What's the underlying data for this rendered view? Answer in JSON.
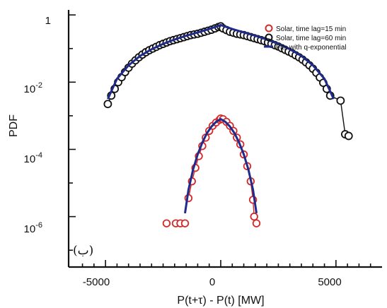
{
  "chart_data": {
    "type": "scatter",
    "xlabel": "P(t+τ) - P(t) [MW]",
    "ylabel": "PDF",
    "xlim": [
      -6600,
      7000
    ],
    "y_scale": "log",
    "ylim_exp": [
      -7.5,
      0.15
    ],
    "x_ticks": [
      -5000,
      0,
      5000
    ],
    "x_tick_labels": [
      "-5000",
      "0",
      "5000"
    ],
    "y_ticks": [
      {
        "base": "1",
        "exp": ""
      },
      {
        "base": "10",
        "exp": "-2"
      },
      {
        "base": "10",
        "exp": "-4"
      },
      {
        "base": "10",
        "exp": "-6"
      }
    ],
    "panel_label": "(ب)",
    "legend_position": "top-right",
    "series": [
      {
        "name": "Solar, time lag=15 min",
        "marker": "open-circle",
        "color": "#d42a2a",
        "points": [
          [
            -2350,
            -6.2
          ],
          [
            -1950,
            -6.2
          ],
          [
            -1750,
            -6.2
          ],
          [
            -1550,
            -6.2
          ],
          [
            -1400,
            -5.45
          ],
          [
            -1250,
            -4.95
          ],
          [
            -1100,
            -4.55
          ],
          [
            -950,
            -4.2
          ],
          [
            -800,
            -3.9
          ],
          [
            -650,
            -3.65
          ],
          [
            -500,
            -3.45
          ],
          [
            -350,
            -3.3
          ],
          [
            -200,
            -3.2
          ],
          [
            -50,
            -3.12
          ],
          [
            0,
            -3.08
          ],
          [
            100,
            -3.1
          ],
          [
            250,
            -3.18
          ],
          [
            400,
            -3.3
          ],
          [
            550,
            -3.45
          ],
          [
            700,
            -3.65
          ],
          [
            850,
            -3.85
          ],
          [
            1000,
            -4.15
          ],
          [
            1150,
            -4.5
          ],
          [
            1300,
            -4.95
          ],
          [
            1400,
            -5.5
          ],
          [
            1450,
            -6.0
          ],
          [
            1550,
            -6.2
          ]
        ]
      },
      {
        "name": "Solar, time lag=60 min",
        "marker": "open-circle",
        "color": "#111111",
        "points": [
          [
            -4900,
            -2.65
          ],
          [
            -4750,
            -2.4
          ],
          [
            -4600,
            -2.2
          ],
          [
            -4450,
            -2.0
          ],
          [
            -4300,
            -1.85
          ],
          [
            -4150,
            -1.7
          ],
          [
            -4000,
            -1.57
          ],
          [
            -3850,
            -1.45
          ],
          [
            -3700,
            -1.35
          ],
          [
            -3550,
            -1.26
          ],
          [
            -3400,
            -1.18
          ],
          [
            -3250,
            -1.11
          ],
          [
            -3100,
            -1.05
          ],
          [
            -2950,
            -1.0
          ],
          [
            -2800,
            -0.95
          ],
          [
            -2650,
            -0.9
          ],
          [
            -2500,
            -0.86
          ],
          [
            -2350,
            -0.82
          ],
          [
            -2200,
            -0.78
          ],
          [
            -2050,
            -0.75
          ],
          [
            -1900,
            -0.72
          ],
          [
            -1750,
            -0.69
          ],
          [
            -1600,
            -0.66
          ],
          [
            -1450,
            -0.63
          ],
          [
            -1300,
            -0.6
          ],
          [
            -1150,
            -0.58
          ],
          [
            -1000,
            -0.56
          ],
          [
            -850,
            -0.53
          ],
          [
            -700,
            -0.5
          ],
          [
            -550,
            -0.47
          ],
          [
            -400,
            -0.44
          ],
          [
            -250,
            -0.4
          ],
          [
            -100,
            -0.36
          ],
          [
            0,
            -0.34
          ],
          [
            100,
            -0.4
          ],
          [
            250,
            -0.45
          ],
          [
            400,
            -0.5
          ],
          [
            550,
            -0.53
          ],
          [
            700,
            -0.56
          ],
          [
            850,
            -0.58
          ],
          [
            1000,
            -0.6
          ],
          [
            1150,
            -0.63
          ],
          [
            1300,
            -0.66
          ],
          [
            1450,
            -0.69
          ],
          [
            1600,
            -0.72
          ],
          [
            1750,
            -0.75
          ],
          [
            1900,
            -0.78
          ],
          [
            2050,
            -0.82
          ],
          [
            2200,
            -0.86
          ],
          [
            2350,
            -0.9
          ],
          [
            2500,
            -0.94
          ],
          [
            2650,
            -0.99
          ],
          [
            2800,
            -1.04
          ],
          [
            2950,
            -1.09
          ],
          [
            3100,
            -1.14
          ],
          [
            3250,
            -1.2
          ],
          [
            3400,
            -1.26
          ],
          [
            3550,
            -1.33
          ],
          [
            3700,
            -1.41
          ],
          [
            3850,
            -1.5
          ],
          [
            4000,
            -1.6
          ],
          [
            4150,
            -1.72
          ],
          [
            4300,
            -1.86
          ],
          [
            4450,
            -2.02
          ],
          [
            4600,
            -2.2
          ],
          [
            4750,
            -2.4
          ],
          [
            5200,
            -2.55
          ],
          [
            5400,
            -3.55
          ],
          [
            5550,
            -3.6
          ]
        ]
      },
      {
        "name": "Fits with q-exponential",
        "marker": "line",
        "color": "#1f2a8a",
        "lines": [
          [
            [
              -4900,
              -2.5
            ],
            [
              -4500,
              -1.9
            ],
            [
              -4000,
              -1.5
            ],
            [
              -3500,
              -1.22
            ],
            [
              -3000,
              -1.02
            ],
            [
              -2500,
              -0.86
            ],
            [
              -2000,
              -0.73
            ],
            [
              -1500,
              -0.62
            ],
            [
              -1000,
              -0.52
            ],
            [
              -500,
              -0.42
            ],
            [
              0,
              -0.3
            ],
            [
              500,
              -0.42
            ],
            [
              1000,
              -0.52
            ],
            [
              1500,
              -0.62
            ],
            [
              2000,
              -0.73
            ],
            [
              2500,
              -0.86
            ],
            [
              3000,
              -1.02
            ],
            [
              3500,
              -1.22
            ],
            [
              4000,
              -1.5
            ],
            [
              4500,
              -1.9
            ],
            [
              4900,
              -2.5
            ]
          ],
          [
            [
              -1550,
              -5.9
            ],
            [
              -1400,
              -5.2
            ],
            [
              -1200,
              -4.6
            ],
            [
              -1000,
              -4.15
            ],
            [
              -800,
              -3.8
            ],
            [
              -600,
              -3.52
            ],
            [
              -400,
              -3.32
            ],
            [
              -200,
              -3.18
            ],
            [
              0,
              -3.1
            ],
            [
              200,
              -3.18
            ],
            [
              400,
              -3.32
            ],
            [
              600,
              -3.52
            ],
            [
              800,
              -3.8
            ],
            [
              1000,
              -4.15
            ],
            [
              1200,
              -4.6
            ],
            [
              1400,
              -5.2
            ],
            [
              1550,
              -5.9
            ]
          ]
        ]
      }
    ]
  }
}
